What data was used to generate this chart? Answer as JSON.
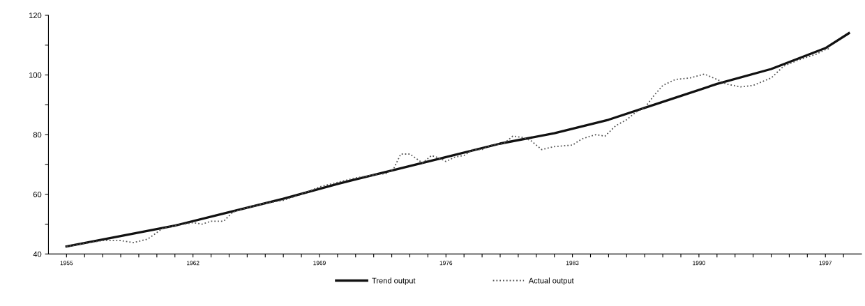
{
  "chart_data": {
    "type": "line",
    "xlim": [
      1954,
      1999
    ],
    "xticks": [
      {
        "value": 1955,
        "label": "1955"
      },
      {
        "value": 1956,
        "label": null
      },
      {
        "value": 1957,
        "label": null
      },
      {
        "value": 1958,
        "label": null
      },
      {
        "value": 1959,
        "label": null
      },
      {
        "value": 1960,
        "label": null
      },
      {
        "value": 1961,
        "label": null
      },
      {
        "value": 1962,
        "label": "1962"
      },
      {
        "value": 1963,
        "label": null
      },
      {
        "value": 1964,
        "label": null
      },
      {
        "value": 1965,
        "label": null
      },
      {
        "value": 1966,
        "label": null
      },
      {
        "value": 1967,
        "label": null
      },
      {
        "value": 1968,
        "label": null
      },
      {
        "value": 1969,
        "label": "1969"
      },
      {
        "value": 1970,
        "label": null
      },
      {
        "value": 1971,
        "label": null
      },
      {
        "value": 1972,
        "label": null
      },
      {
        "value": 1973,
        "label": null
      },
      {
        "value": 1974,
        "label": null
      },
      {
        "value": 1975,
        "label": null
      },
      {
        "value": 1976,
        "label": "1976"
      },
      {
        "value": 1977,
        "label": null
      },
      {
        "value": 1978,
        "label": null
      },
      {
        "value": 1979,
        "label": null
      },
      {
        "value": 1980,
        "label": null
      },
      {
        "value": 1981,
        "label": null
      },
      {
        "value": 1982,
        "label": null
      },
      {
        "value": 1983,
        "label": "1983"
      },
      {
        "value": 1984,
        "label": null
      },
      {
        "value": 1985,
        "label": null
      },
      {
        "value": 1986,
        "label": null
      },
      {
        "value": 1987,
        "label": null
      },
      {
        "value": 1988,
        "label": null
      },
      {
        "value": 1989,
        "label": null
      },
      {
        "value": 1990,
        "label": "1990"
      },
      {
        "value": 1991,
        "label": null
      },
      {
        "value": 1992,
        "label": null
      },
      {
        "value": 1993,
        "label": null
      },
      {
        "value": 1994,
        "label": null
      },
      {
        "value": 1995,
        "label": null
      },
      {
        "value": 1996,
        "label": null
      },
      {
        "value": 1997,
        "label": "1997"
      },
      {
        "value": 1998,
        "label": null
      }
    ],
    "ylim": [
      40,
      120
    ],
    "yticks": [
      40,
      {
        "value": 50,
        "label": null
      },
      60,
      {
        "value": 70,
        "label": null
      },
      80,
      {
        "value": 90,
        "label": null
      },
      100,
      {
        "value": 110,
        "label": null
      },
      120
    ],
    "grid": false,
    "legend": "bottom",
    "marker": "none",
    "series": [
      {
        "name": "Trend output",
        "color": "#111111",
        "line_style": "solid",
        "x": [
          1955,
          1958,
          1961,
          1964,
          1967,
          1970,
          1973,
          1976,
          1979,
          1982,
          1985,
          1988,
          1991,
          1994,
          1997,
          1998.3
        ],
        "values": [
          42.5,
          46,
          49.5,
          54,
          58.5,
          63.5,
          68,
          72.5,
          77,
          80.5,
          85,
          91,
          97,
          102,
          109,
          114
        ]
      },
      {
        "name": "Actual output",
        "color": "#555555",
        "line_style": "dotted",
        "x": [
          1955,
          1956,
          1957,
          1958,
          1958.7,
          1959.5,
          1960.3,
          1961,
          1962,
          1962.5,
          1963,
          1963.7,
          1964.2,
          1965,
          1966,
          1967,
          1968,
          1969,
          1970,
          1971,
          1972,
          1972.7,
          1973.1,
          1973.5,
          1974,
          1974.7,
          1975.2,
          1975.7,
          1976,
          1976.5,
          1977,
          1977.5,
          1978,
          1978.5,
          1979.2,
          1979.7,
          1980.3,
          1980.7,
          1981.3,
          1982,
          1983,
          1983.5,
          1984,
          1984.3,
          1984.8,
          1985.4,
          1986,
          1986.5,
          1987,
          1987.5,
          1988,
          1988.7,
          1989.5,
          1990.3,
          1991,
          1991.5,
          1992.3,
          1993,
          1994,
          1994.7,
          1995.5,
          1996.5,
          1997,
          1997.3
        ],
        "values": [
          42.5,
          43.5,
          44.5,
          44.5,
          43.8,
          45,
          48.5,
          49.5,
          50.5,
          50,
          51,
          51,
          54,
          55.5,
          57,
          58,
          60,
          62.5,
          64,
          65.5,
          66.5,
          67,
          68.5,
          73.5,
          73.5,
          70.5,
          73,
          72,
          71,
          72.5,
          73,
          75,
          75,
          76.5,
          77,
          79.5,
          79,
          78,
          75,
          76,
          76.5,
          78.5,
          79.5,
          80,
          79.5,
          83,
          85,
          87.5,
          89,
          93,
          96.5,
          98.5,
          99,
          100.3,
          98.5,
          97,
          96,
          96.5,
          99,
          103,
          105,
          107,
          108.5,
          109
        ]
      }
    ]
  }
}
